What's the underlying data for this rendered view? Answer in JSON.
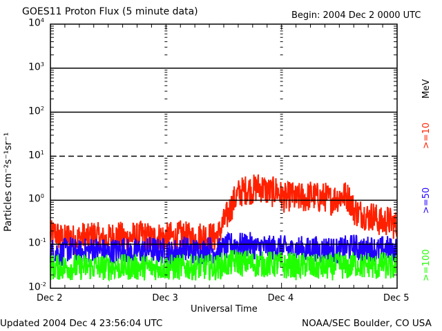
{
  "chart_data": {
    "type": "line",
    "title": "GOES11 Proton Flux (5 minute data)",
    "begin": "Begin: 2004 Dec 2 0000 UTC",
    "xlabel": "Universal Time",
    "ylabel": "Particles cm⁻²s⁻¹sr⁻¹",
    "x_ticks": [
      "Dec 2",
      "Dec 3",
      "Dec 4",
      "Dec 5"
    ],
    "x_unit": "hours since 2004 Dec 2 0000 UTC (hourly samples)",
    "xlim": [
      0,
      72
    ],
    "yscale": "log",
    "ylim": [
      0.01,
      10000
    ],
    "y_ticks": [
      {
        "base": "10",
        "exp": "4"
      },
      {
        "base": "10",
        "exp": "3"
      },
      {
        "base": "10",
        "exp": "2"
      },
      {
        "base": "10",
        "exp": "1"
      },
      {
        "base": "10",
        "exp": "0"
      },
      {
        "base": "10",
        "exp": "-1"
      },
      {
        "base": "10",
        "exp": "-2"
      }
    ],
    "unit_label": "MeV",
    "series": [
      {
        "name": ">=10",
        "color": "#ff2000",
        "spread": 0.35,
        "values": [
          0.15,
          0.18,
          0.14,
          0.13,
          0.16,
          0.12,
          0.14,
          0.15,
          0.13,
          0.17,
          0.14,
          0.12,
          0.13,
          0.15,
          0.16,
          0.14,
          0.13,
          0.15,
          0.14,
          0.16,
          0.15,
          0.13,
          0.14,
          0.15,
          0.14,
          0.15,
          0.13,
          0.16,
          0.15,
          0.14,
          0.13,
          0.15,
          0.16,
          0.15,
          0.14,
          0.17,
          0.3,
          0.5,
          0.9,
          1.4,
          1.6,
          1.8,
          1.7,
          2.0,
          1.9,
          1.6,
          1.5,
          1.7,
          1.2,
          1.1,
          1.3,
          1.0,
          1.2,
          1.1,
          1.3,
          1.2,
          1.1,
          1.2,
          1.0,
          1.1,
          1.2,
          1.3,
          1.1,
          0.6,
          0.5,
          0.5,
          0.4,
          0.45,
          0.35,
          0.3,
          0.35,
          0.3,
          0.25
        ]
      },
      {
        "name": ">=50",
        "color": "#2000ff",
        "spread": 0.3,
        "values": [
          0.07,
          0.07,
          0.06,
          0.07,
          0.08,
          0.07,
          0.06,
          0.07,
          0.07,
          0.08,
          0.07,
          0.07,
          0.06,
          0.07,
          0.07,
          0.08,
          0.07,
          0.06,
          0.07,
          0.07,
          0.07,
          0.08,
          0.07,
          0.07,
          0.07,
          0.06,
          0.07,
          0.07,
          0.08,
          0.07,
          0.07,
          0.07,
          0.07,
          0.08,
          0.07,
          0.07,
          0.08,
          0.09,
          0.1,
          0.1,
          0.09,
          0.1,
          0.09,
          0.08,
          0.09,
          0.08,
          0.08,
          0.09,
          0.08,
          0.08,
          0.07,
          0.08,
          0.08,
          0.07,
          0.08,
          0.08,
          0.07,
          0.08,
          0.08,
          0.07,
          0.07,
          0.08,
          0.08,
          0.09,
          0.08,
          0.07,
          0.08,
          0.08,
          0.07,
          0.08,
          0.08,
          0.07,
          0.08
        ]
      },
      {
        "name": ">=100",
        "color": "#20ff00",
        "spread": 0.3,
        "values": [
          0.03,
          0.03,
          0.03,
          0.03,
          0.03,
          0.03,
          0.03,
          0.03,
          0.03,
          0.03,
          0.03,
          0.03,
          0.03,
          0.03,
          0.03,
          0.03,
          0.03,
          0.03,
          0.03,
          0.03,
          0.03,
          0.03,
          0.03,
          0.03,
          0.03,
          0.03,
          0.03,
          0.03,
          0.03,
          0.03,
          0.03,
          0.03,
          0.03,
          0.03,
          0.03,
          0.03,
          0.035,
          0.035,
          0.04,
          0.04,
          0.035,
          0.04,
          0.035,
          0.035,
          0.035,
          0.035,
          0.035,
          0.035,
          0.035,
          0.03,
          0.035,
          0.03,
          0.03,
          0.035,
          0.03,
          0.03,
          0.03,
          0.03,
          0.03,
          0.03,
          0.035,
          0.03,
          0.03,
          0.035,
          0.035,
          0.03,
          0.035,
          0.03,
          0.03,
          0.035,
          0.03,
          0.03,
          0.03
        ]
      }
    ]
  },
  "footer": {
    "updated": "Updated 2004 Dec  4 23:56:04 UTC",
    "source": "NOAA/SEC Boulder, CO USA"
  }
}
